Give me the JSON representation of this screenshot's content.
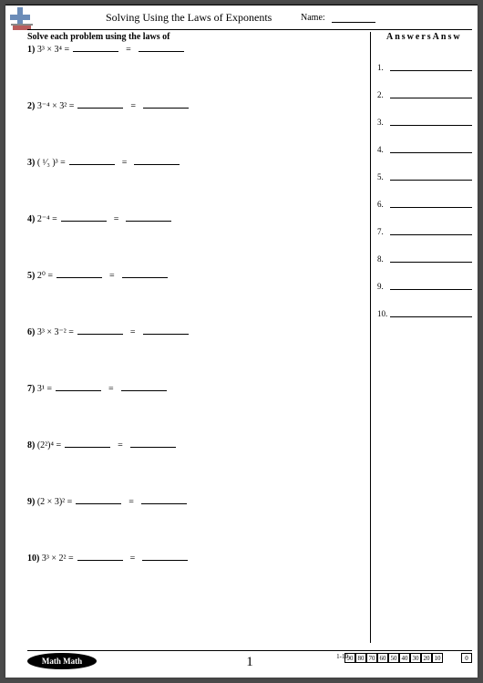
{
  "title": "Solving Using the Laws of Exponents",
  "name_label": "Name:",
  "instructions": "Solve each problem using the laws of",
  "answers_header": "AnswersAnsw",
  "problems": [
    {
      "num": "1)",
      "expr": "1)3³ × 3⁴ ="
    },
    {
      "num": "2)",
      "expr": "2)3⁻⁴ × 3² ="
    },
    {
      "num": "3)",
      "expr": "3)( ¹⁄₃ )³ ="
    },
    {
      "num": "4)",
      "expr": "4)2⁻⁴ ="
    },
    {
      "num": "5)",
      "expr": "5)2⁰ ="
    },
    {
      "num": "6)",
      "expr": "6)3³ × 3⁻² ="
    },
    {
      "num": "7)",
      "expr": "7)3¹ ="
    },
    {
      "num": "8)",
      "expr": "8)(2²)⁴ ="
    },
    {
      "num": "9)",
      "expr": "9)(2 × 3)² ="
    },
    {
      "num": "10)",
      "expr": "10)3³ × 2² ="
    }
  ],
  "answers": [
    {
      "num": "1."
    },
    {
      "num": "2."
    },
    {
      "num": "3."
    },
    {
      "num": "4."
    },
    {
      "num": "5."
    },
    {
      "num": "6."
    },
    {
      "num": "7."
    },
    {
      "num": "8."
    },
    {
      "num": "9."
    },
    {
      "num": "10."
    }
  ],
  "footer_brand": "Math Math",
  "page_number": "1",
  "score_range": "1-10",
  "score_values": [
    "90",
    "80",
    "70",
    "60",
    "50",
    "40",
    "30",
    "20",
    "10",
    "",
    "0"
  ],
  "logo_colors": {
    "blue": "#6b8cb8",
    "red": "#b85c5c",
    "gray": "#888"
  },
  "badge_bg": "#000",
  "badge_fg": "#fff"
}
